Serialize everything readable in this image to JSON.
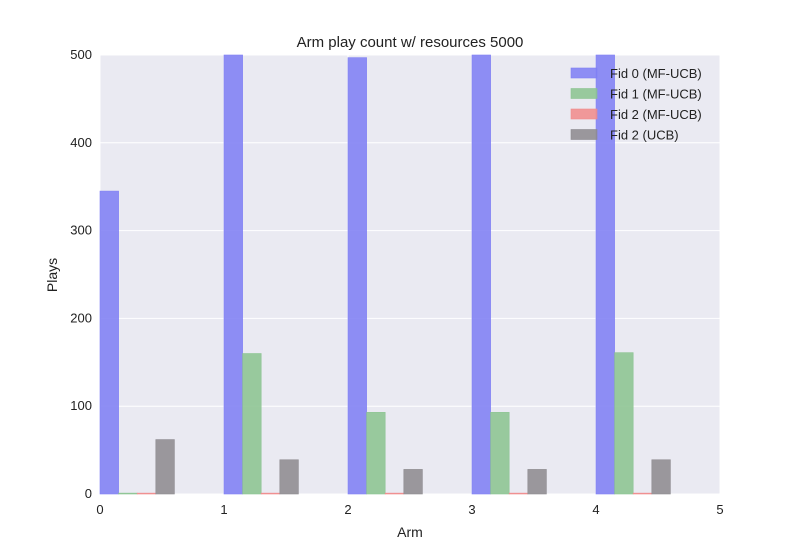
{
  "chart_data": {
    "type": "bar",
    "title": "Arm play count w/ resources 5000",
    "xlabel": "Arm",
    "ylabel": "Plays",
    "xlim": [
      0,
      5
    ],
    "ylim": [
      0,
      500
    ],
    "xticks": [
      "0",
      "1",
      "2",
      "3",
      "4",
      "5"
    ],
    "yticks": [
      "0",
      "100",
      "200",
      "300",
      "400",
      "500"
    ],
    "grid": true,
    "legend_position": "top-right",
    "bar_width": 0.15,
    "series": [
      {
        "name": "Fid 0 (MF-UCB)",
        "offset": 0.0,
        "color": "#8080f4",
        "values": [
          345,
          500,
          497,
          500,
          500
        ]
      },
      {
        "name": "Fid 1 (MF-UCB)",
        "offset": 0.15,
        "color": "#8cc491",
        "values": [
          1,
          160,
          93,
          93,
          161
        ]
      },
      {
        "name": "Fid 2 (MF-UCB)",
        "offset": 0.3,
        "color": "#f08c8c",
        "values": [
          1,
          1,
          1,
          1,
          1
        ]
      },
      {
        "name": "Fid 2 (UCB)",
        "offset": 0.45,
        "color": "#8e8b90",
        "values": [
          62,
          39,
          28,
          28,
          39
        ]
      }
    ],
    "arms": [
      0,
      1,
      2,
      3,
      4
    ]
  }
}
